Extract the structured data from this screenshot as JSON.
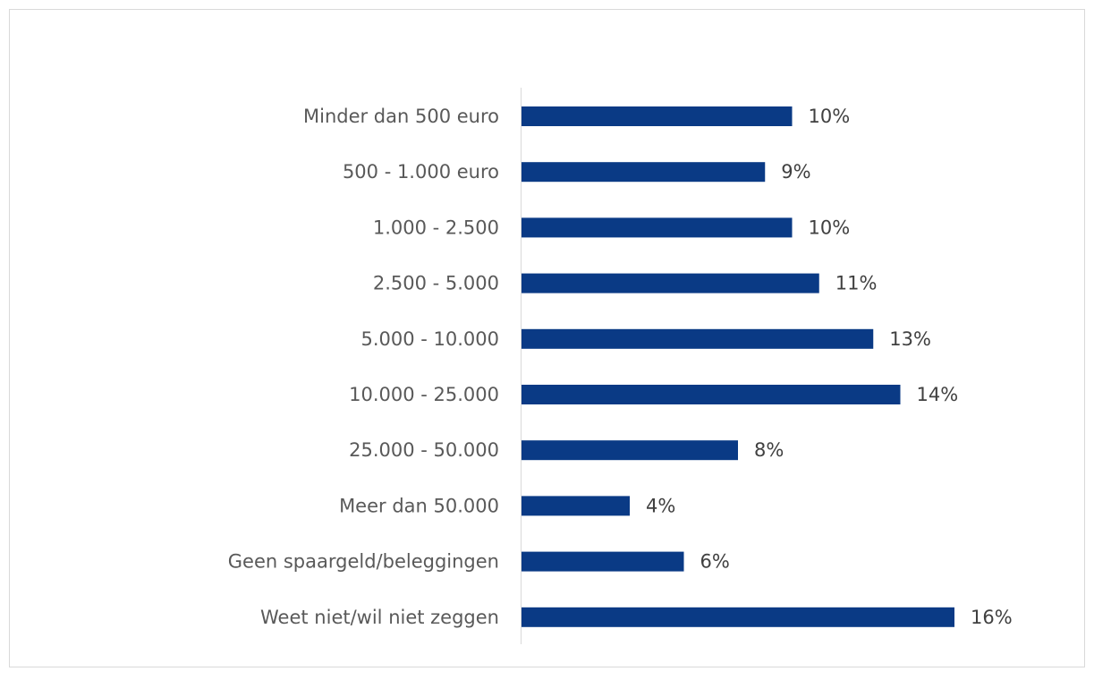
{
  "chart_data": {
    "type": "bar",
    "orientation": "horizontal",
    "categories": [
      "Minder dan 500 euro",
      "500 - 1.000 euro",
      "1.000 - 2.500",
      "2.500 - 5.000",
      "5.000 - 10.000",
      "10.000 - 25.000",
      "25.000 - 50.000",
      "Meer dan 50.000",
      "Geen spaargeld/beleggingen",
      "Weet niet/wil niet zeggen"
    ],
    "values": [
      10,
      9,
      10,
      11,
      13,
      14,
      8,
      4,
      6,
      16
    ],
    "value_labels": [
      "10%",
      "9%",
      "10%",
      "11%",
      "13%",
      "14%",
      "8%",
      "4%",
      "6%",
      "16%"
    ],
    "color": "#0a3a85"
  }
}
